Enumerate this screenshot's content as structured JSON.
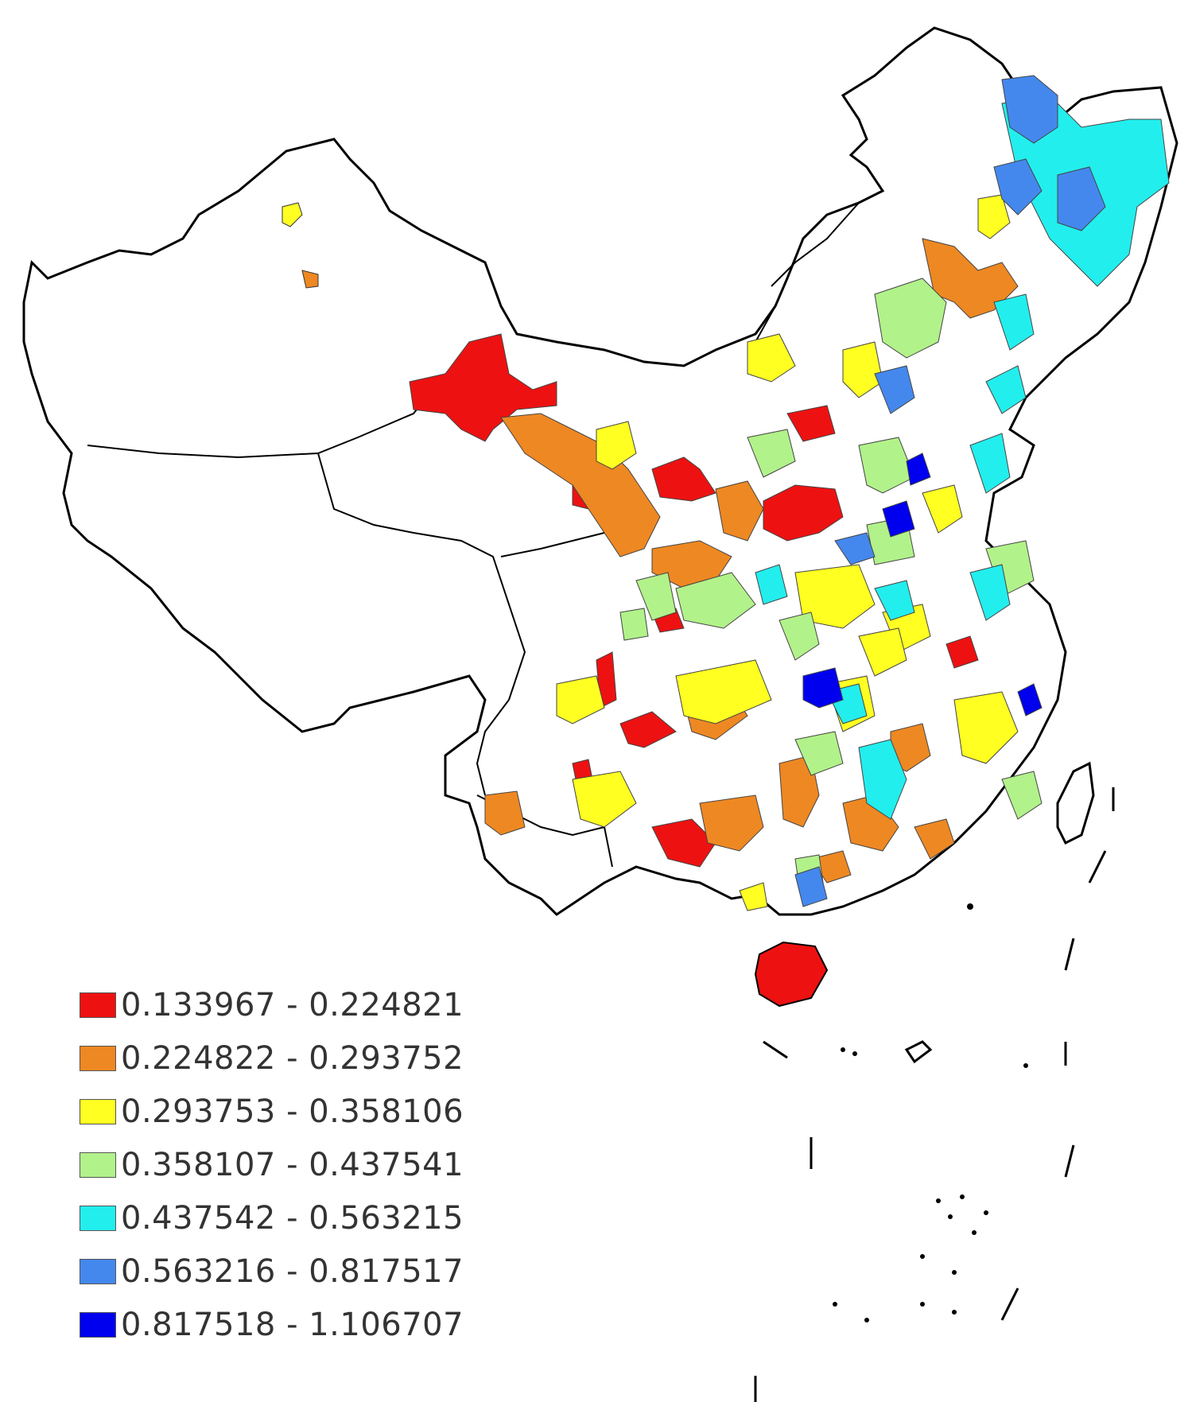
{
  "legend": {
    "items": [
      {
        "label": "0.133967 - 0.224821",
        "color": "#ee1111"
      },
      {
        "label": "0.224822 - 0.293752",
        "color": "#ee8822"
      },
      {
        "label": "0.293753 - 0.358106",
        "color": "#ffff22"
      },
      {
        "label": "0.358107 - 0.437541",
        "color": "#b2f28a"
      },
      {
        "label": "0.437542 - 0.563215",
        "color": "#22eeee"
      },
      {
        "label": "0.563216 - 0.817517",
        "color": "#4488ee"
      },
      {
        "label": "0.817518 - 1.106707",
        "color": "#0000ee"
      }
    ]
  }
}
